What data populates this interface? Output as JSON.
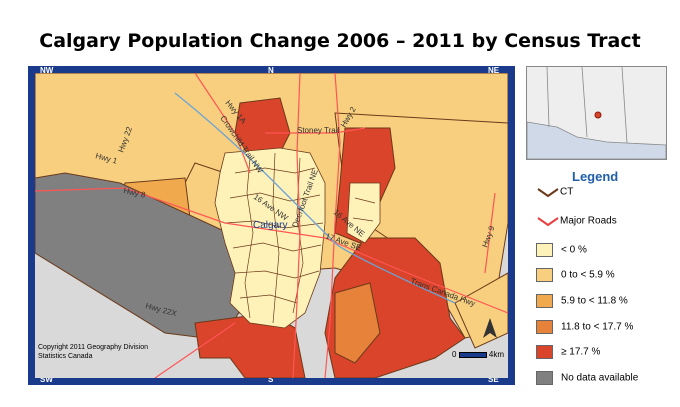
{
  "title": "Calgary Population Change 2006 – 2011 by Census Tract",
  "map": {
    "compass": {
      "nw": "NW",
      "n": "N",
      "ne": "NE",
      "sw": "SW",
      "s": "S",
      "se": "SE",
      "w": "W",
      "e": "E"
    },
    "place_label": "Calgary",
    "road_labels": [
      "Hwy 1A",
      "Crowchild Trail NW",
      "Stoney Trail",
      "Hwy 2",
      "Hwy 22",
      "Hwy 1",
      "Hwy 8",
      "16 Ave NW",
      "Deerfoot Trail NE",
      "16 Ave NE",
      "17 Ave SE",
      "Trans Canada Hwy",
      "Hwy 9",
      "Hwy 22X"
    ],
    "copyright": "Copyright 2011 Geography Division",
    "copyright2": "Statistics Canada",
    "scale_start": "0",
    "scale_end": "4km",
    "colors": {
      "background_land": "#d9d9d9",
      "lt0": "#fff2b8",
      "c0_5_9": "#f8cf7e",
      "c5_9_11_8": "#f0a94c",
      "c11_8_17_7": "#e6823a",
      "c_ge_17_7": "#d9442a",
      "no_data": "#808080",
      "ct_border": "#6b3a1b",
      "road": "#ff5555",
      "frame": "#1a3a8c"
    }
  },
  "legend": {
    "title": "Legend",
    "items": [
      {
        "label": "CT",
        "kind": "line",
        "color": "#6b3a1b"
      },
      {
        "label": "Major Roads",
        "kind": "line",
        "color": "#e84040"
      },
      {
        "label": "< 0 %",
        "kind": "fill",
        "color": "#fff2b8"
      },
      {
        "label": "0 to < 5.9 %",
        "kind": "fill",
        "color": "#f8cf7e"
      },
      {
        "label": "5.9 to < 11.8 %",
        "kind": "fill",
        "color": "#f0a94c"
      },
      {
        "label": "11.8 to < 17.7 %",
        "kind": "fill",
        "color": "#e6823a"
      },
      {
        "label": "≥ 17.7 %",
        "kind": "fill",
        "color": "#d9442a"
      },
      {
        "label": "No data available",
        "kind": "fill",
        "color": "#808080"
      }
    ]
  }
}
